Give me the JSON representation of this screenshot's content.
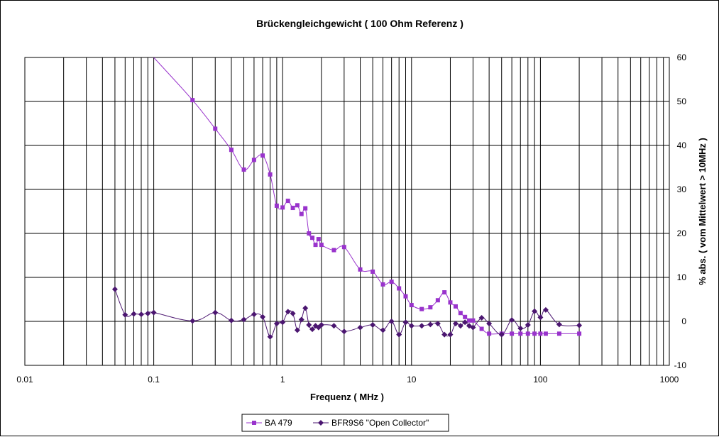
{
  "chart_data": {
    "type": "line",
    "title": "Brückengleichgewicht ( 100 Ohm Referenz )",
    "xlabel": "Frequenz ( MHz )",
    "ylabel": "% abs. ( vom Mittelwert > 10MHz )",
    "x_scale": "log",
    "xlim": [
      0.01,
      1000
    ],
    "ylim": [
      -10,
      60
    ],
    "x_tick_labels": [
      "0.01",
      "0.1",
      "1",
      "10",
      "100",
      "1000"
    ],
    "y_tick_labels": [
      "-10",
      "0",
      "10",
      "20",
      "30",
      "40",
      "50",
      "60"
    ],
    "grid": true,
    "legend_position": "bottom",
    "series": [
      {
        "name": "BA 479",
        "color": "#9933cc",
        "marker": "square",
        "x": [
          0.1,
          0.2,
          0.3,
          0.4,
          0.5,
          0.6,
          0.7,
          0.8,
          0.9,
          1.0,
          1.1,
          1.2,
          1.3,
          1.4,
          1.5,
          1.6,
          1.7,
          1.8,
          1.9,
          2.0,
          2.5,
          3,
          4,
          5,
          6,
          7,
          8,
          9,
          10,
          12,
          14,
          16,
          18,
          20,
          22,
          24,
          26,
          28,
          30,
          35,
          40,
          50,
          60,
          70,
          80,
          90,
          100,
          110,
          140,
          200
        ],
        "y": [
          60,
          50.3,
          43.8,
          39,
          34.5,
          36.7,
          37.7,
          33.4,
          26.3,
          25.9,
          27.4,
          25.8,
          26.4,
          24.4,
          25.7,
          20,
          19,
          17.4,
          18.7,
          17.4,
          16.2,
          16.9,
          11.8,
          11.3,
          8.4,
          9,
          7.5,
          5.7,
          3.7,
          2.8,
          3.2,
          4.8,
          6.6,
          4.3,
          3.4,
          1.9,
          1.0,
          0.2,
          0.2,
          -1.7,
          -2.8,
          -2.8,
          -2.8,
          -2.8,
          -2.8,
          -2.8,
          -2.8,
          -2.8,
          -2.8,
          -2.8
        ]
      },
      {
        "name": "BFR9S6 \"Open Collector\"",
        "color": "#4b1670",
        "marker": "diamond",
        "x": [
          0.05,
          0.06,
          0.07,
          0.08,
          0.09,
          0.1,
          0.2,
          0.3,
          0.4,
          0.5,
          0.6,
          0.7,
          0.8,
          0.9,
          1.0,
          1.1,
          1.2,
          1.3,
          1.4,
          1.5,
          1.6,
          1.7,
          1.8,
          1.9,
          2.0,
          2.5,
          3,
          4,
          5,
          6,
          7,
          8,
          9,
          10,
          12,
          14,
          16,
          18,
          20,
          22,
          24,
          26,
          28,
          30,
          35,
          40,
          50,
          60,
          70,
          80,
          90,
          100,
          110,
          140,
          200
        ],
        "y": [
          7.3,
          1.5,
          1.7,
          1.6,
          1.8,
          2.0,
          0.1,
          2.0,
          0.2,
          0.4,
          1.6,
          1.0,
          -3.5,
          -0.5,
          -0.2,
          2.2,
          1.8,
          -2.0,
          0.4,
          3.0,
          -0.8,
          -1.8,
          -1.0,
          -1.4,
          -0.8,
          -1.0,
          -2.3,
          -1.4,
          -0.8,
          -2.0,
          0,
          -3.0,
          -0.2,
          -1.0,
          -1.0,
          -0.7,
          -0.5,
          -3.0,
          -3.0,
          -0.5,
          -1.0,
          -0.2,
          -1.0,
          -1.4,
          0.8,
          -0.5,
          -3.0,
          0.3,
          -1.6,
          -0.8,
          2.3,
          0.9,
          2.6,
          -0.7,
          -0.9
        ]
      }
    ]
  }
}
